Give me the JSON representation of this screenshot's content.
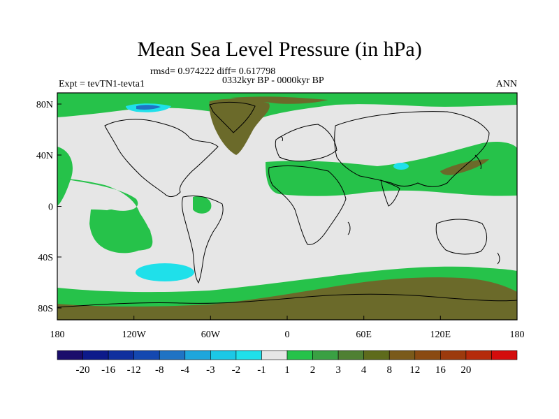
{
  "title": "Mean Sea Level Pressure (in hPa)",
  "stats": "rmsd= 0.974222 diff= 0.617798",
  "expt": "Expt = tevTN1-tevta1",
  "period": "0332kyr BP - 0000kyr BP",
  "season": "ANN",
  "lon_ticks": [
    "180",
    "120W",
    "60W",
    "0",
    "60E",
    "120E",
    "180"
  ],
  "lat_ticks": [
    "80N",
    "40N",
    "0",
    "40S",
    "80S"
  ],
  "colorbar": {
    "colors": [
      "#1a0d6b",
      "#0d1a8a",
      "#0f2f9e",
      "#1448b0",
      "#1f73c4",
      "#1ea6dc",
      "#1bc8e6",
      "#1fe0ea",
      "#e6e6e6",
      "#26c24a",
      "#3aa043",
      "#4f8033",
      "#5e6b1c",
      "#7a5a1a",
      "#8a4a12",
      "#9c3a0d",
      "#b52b0b",
      "#d40c0c"
    ],
    "labels": [
      "-20",
      "-16",
      "-12",
      "-8",
      "-4",
      "-3",
      "-2",
      "-1",
      "1",
      "2",
      "3",
      "4",
      "8",
      "12",
      "16",
      "20"
    ]
  },
  "fill_colors": {
    "background": "#e6e6e6",
    "light_green": "#26c24a",
    "dark_green": "#4f8033",
    "olive": "#6b6a2a",
    "cyan": "#1fe0ea",
    "blue": "#1f73c4"
  }
}
